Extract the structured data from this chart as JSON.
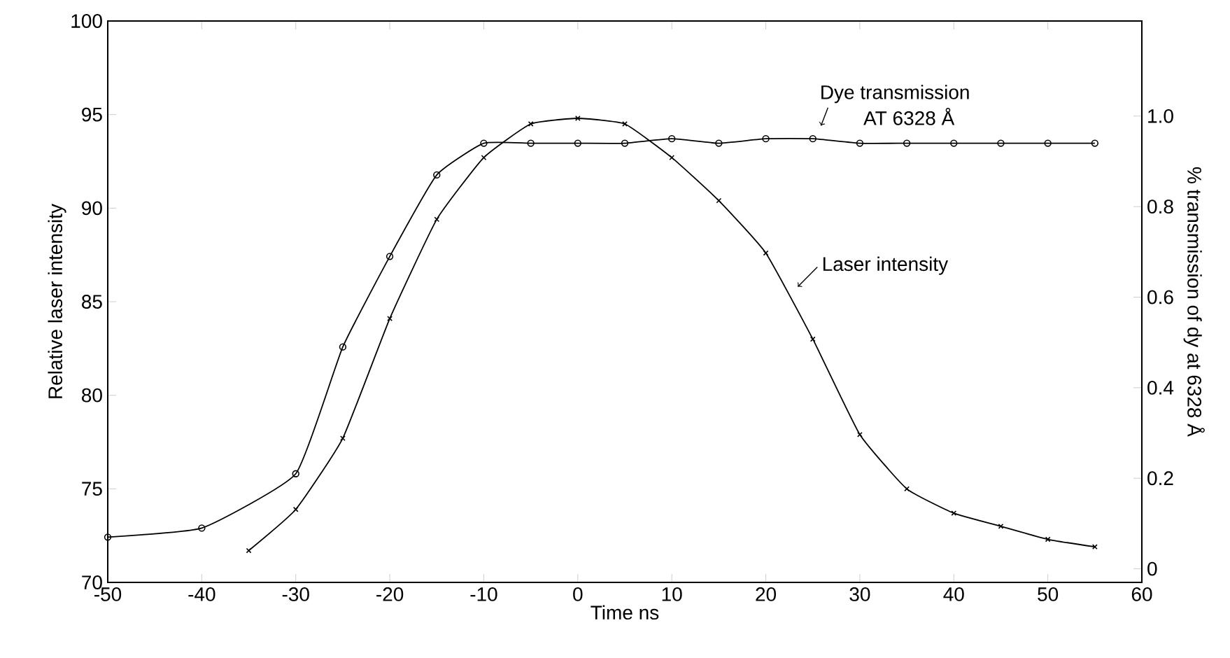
{
  "chart_data": {
    "type": "line",
    "xlabel": "Time ns",
    "ylabel": "Relative laser intensity",
    "y2label": "% transmission of dy at 6328 Å",
    "xlim": [
      -50,
      60
    ],
    "xticks": [
      -50,
      -40,
      -30,
      -20,
      -10,
      0,
      10,
      20,
      30,
      40,
      50,
      60
    ],
    "ylim": [
      70,
      100
    ],
    "yticks": [
      70,
      75,
      80,
      85,
      90,
      95,
      100
    ],
    "y2lim": [
      -0.03,
      1.21
    ],
    "y2ticks": [
      0,
      0.2,
      0.4,
      0.6,
      0.8,
      {
        "value": 1,
        "label": "1.0"
      }
    ],
    "series": [
      {
        "color": "#000000",
        "marker": "cross",
        "x": [
          -35,
          -30,
          -25,
          -20,
          -15,
          -10,
          -5,
          0,
          5,
          10,
          15,
          20,
          25,
          30,
          35,
          40,
          45,
          50,
          55
        ],
        "values": [
          71.7,
          73.9,
          77.7,
          84.1,
          89.4,
          92.7,
          94.5,
          94.8,
          94.5,
          92.7,
          90.4,
          87.6,
          83,
          77.9,
          75,
          73.7,
          73,
          72.3,
          71.9
        ]
      },
      {
        "color": "#000000",
        "marker": "circle",
        "axis": "y2",
        "x": [
          -50,
          -40,
          -30,
          -25,
          -20,
          -15,
          -10,
          -5,
          0,
          5,
          10,
          15,
          20,
          25,
          30,
          35,
          40,
          45,
          50,
          55
        ],
        "values": [
          0.07,
          0.09,
          0.21,
          0.49,
          0.69,
          0.87,
          0.94,
          0.94,
          0.94,
          0.94,
          0.95,
          0.94,
          0.95,
          0.95,
          0.94,
          0.94,
          0.94,
          0.94,
          0.94,
          0.94
        ]
      }
    ],
    "annotations": [
      "Dye transmission",
      "AT 6328 Å",
      {
        "text": "Laser intensity",
        "x": 23.4,
        "y": 85.8
      }
    ]
  }
}
